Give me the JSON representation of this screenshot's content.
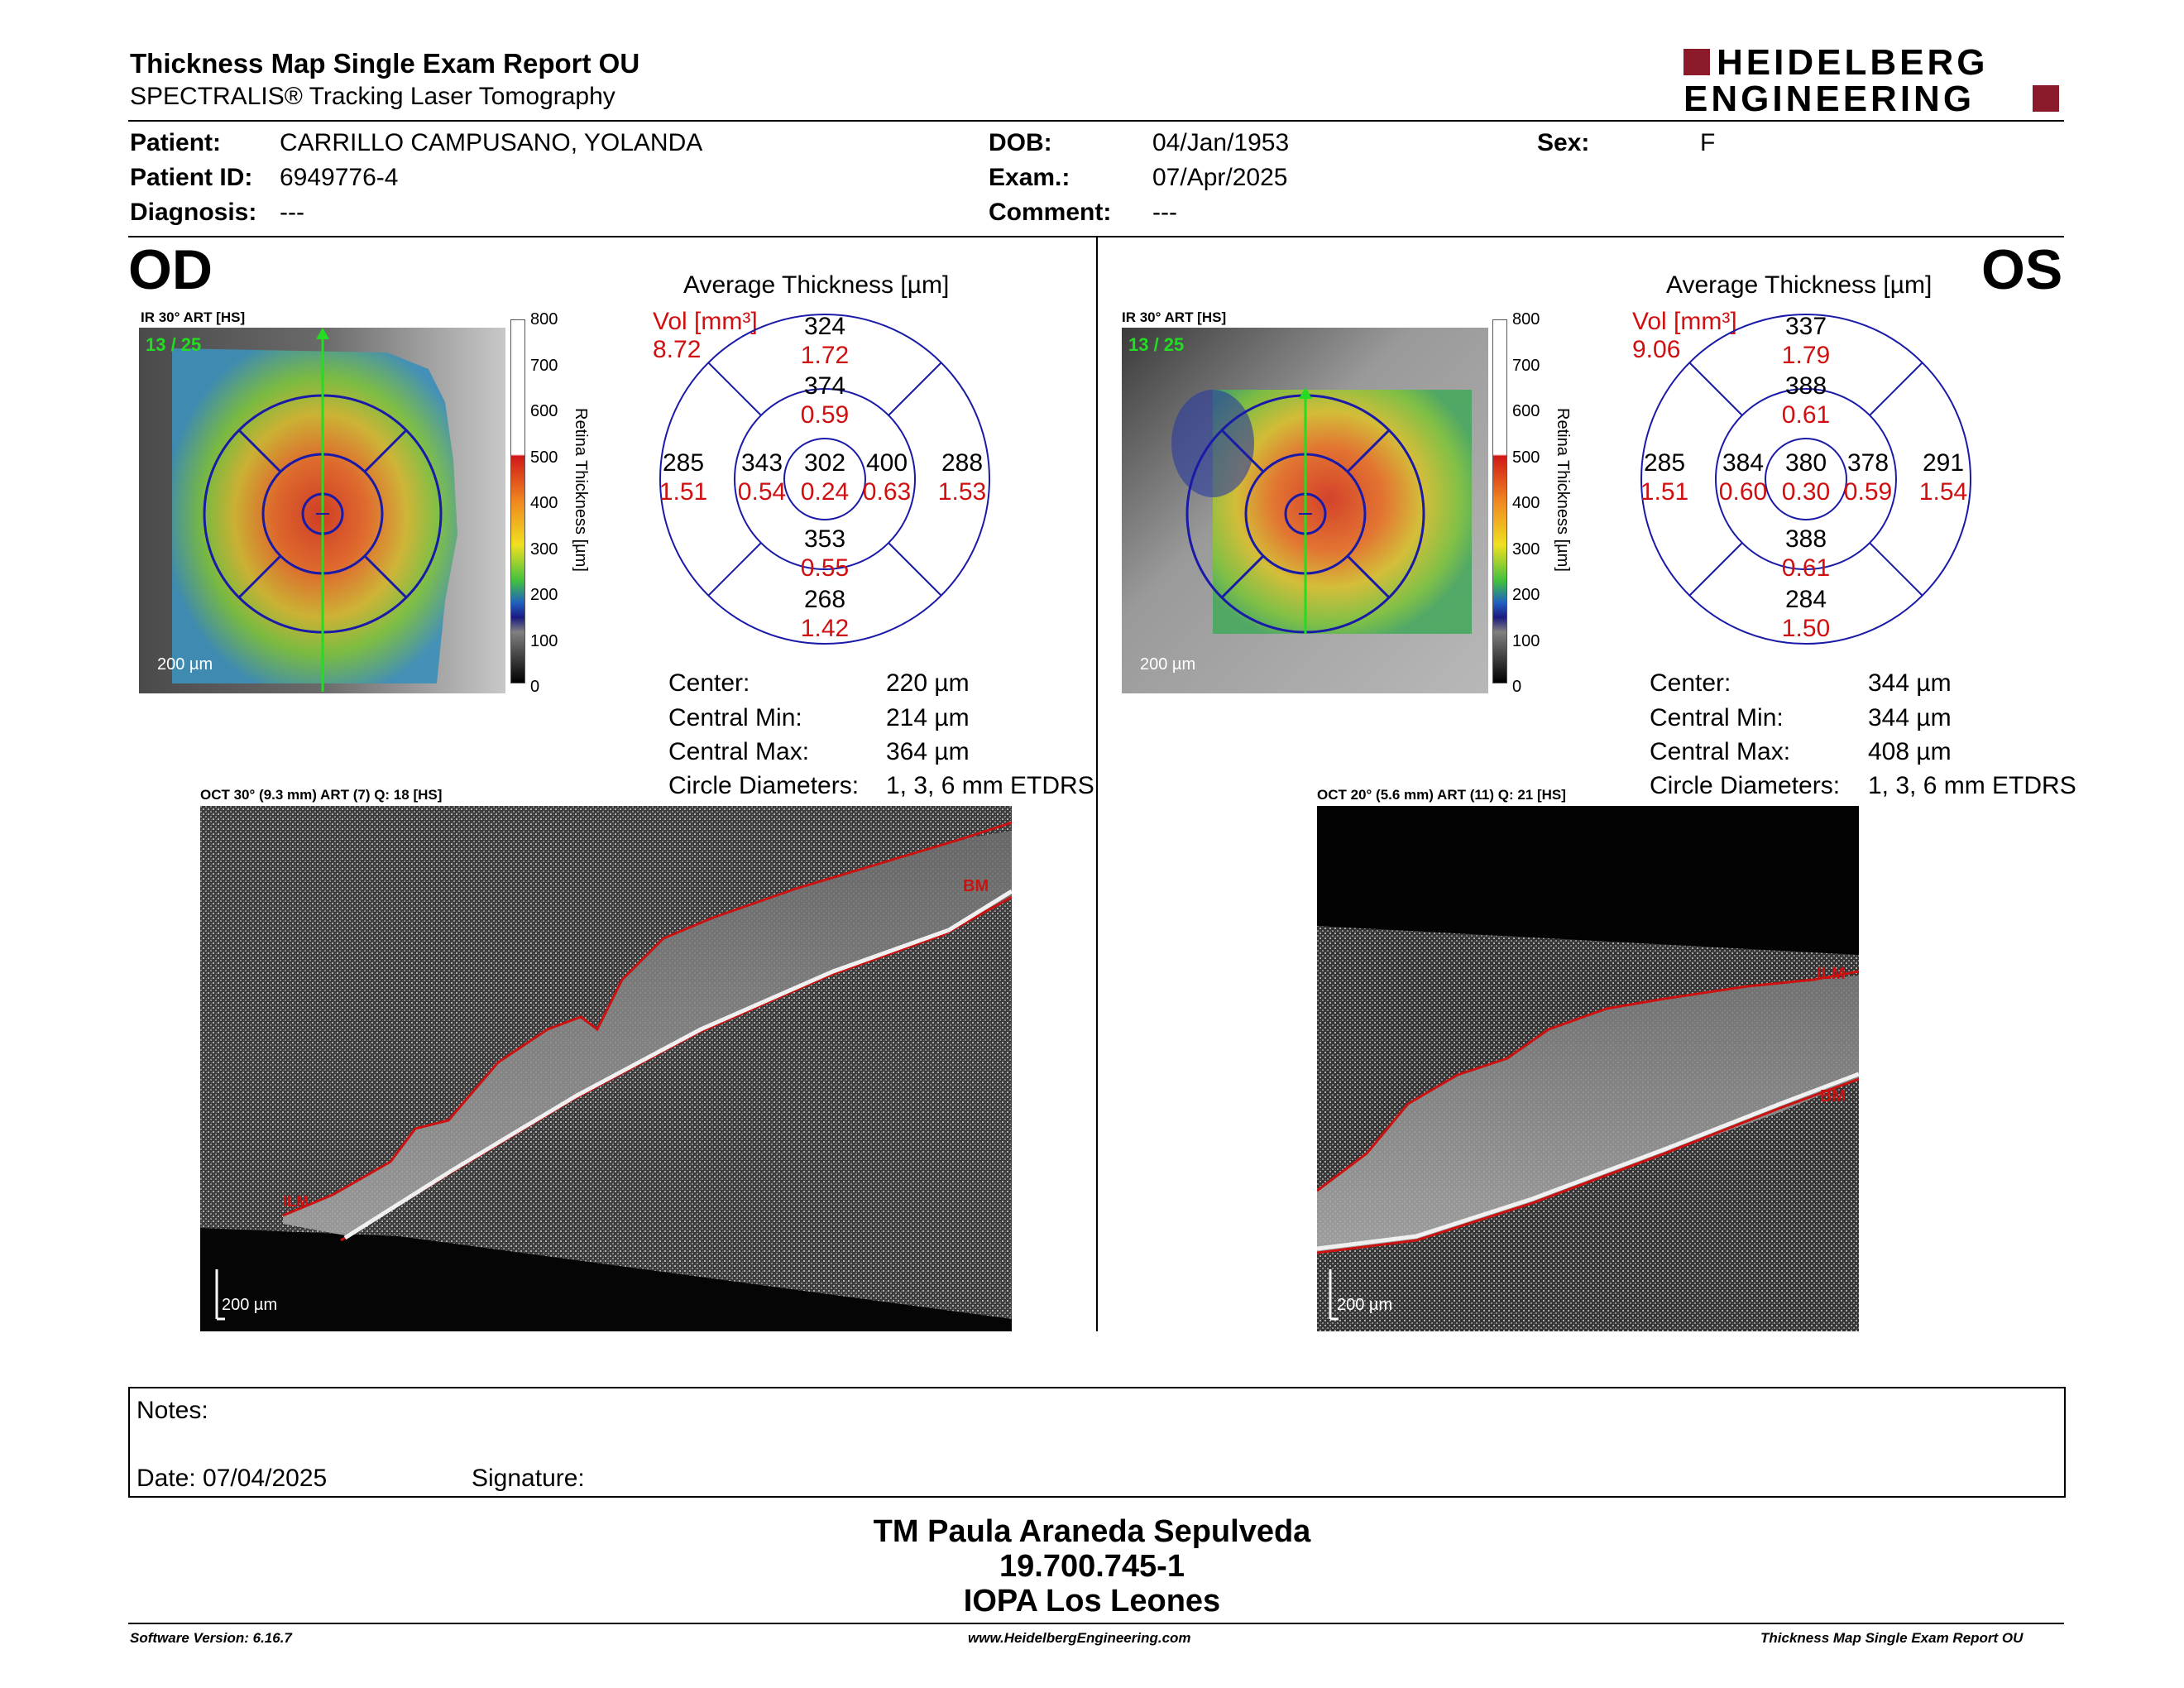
{
  "header": {
    "title": "Thickness Map Single Exam Report OU",
    "subtitle": "SPECTRALIS® Tracking Laser Tomography",
    "logo_line1": "HEIDELBERG",
    "logo_line2": "ENGINEERING",
    "logo_color": "#8b1a2b"
  },
  "patient": {
    "patient_label": "Patient:",
    "patient_value": "CARRILLO CAMPUSANO, YOLANDA",
    "id_label": "Patient ID:",
    "id_value": "6949776-4",
    "diagnosis_label": "Diagnosis:",
    "diagnosis_value": "---",
    "dob_label": "DOB:",
    "dob_value": "04/Jan/1953",
    "exam_label": "Exam.:",
    "exam_value": "07/Apr/2025",
    "comment_label": "Comment:",
    "comment_value": "---",
    "sex_label": "Sex:",
    "sex_value": "F"
  },
  "od": {
    "eye_label": "OD",
    "ir_label": "IR 30° ART [HS]",
    "frames": "13 / 25",
    "scale": "200 µm",
    "avg_title": "Average Thickness [µm]",
    "vol_label": "Vol [mm³]",
    "vol_value": "8.72",
    "sectors": {
      "center_t": "302",
      "center_v": "0.24",
      "inner_sup_t": "374",
      "inner_sup_v": "0.59",
      "inner_inf_t": "353",
      "inner_inf_v": "0.55",
      "inner_left_t": "343",
      "inner_left_v": "0.54",
      "inner_right_t": "400",
      "inner_right_v": "0.63",
      "outer_sup_t": "324",
      "outer_sup_v": "1.72",
      "outer_inf_t": "268",
      "outer_inf_v": "1.42",
      "outer_left_t": "285",
      "outer_left_v": "1.51",
      "outer_right_t": "288",
      "outer_right_v": "1.53"
    },
    "stats": {
      "center_label": "Center:",
      "center_value": "220 µm",
      "min_label": "Central Min:",
      "min_value": "214 µm",
      "max_label": "Central Max:",
      "max_value": "364 µm",
      "diam_label": "Circle Diameters:",
      "diam_value": "1, 3, 6 mm ETDRS"
    },
    "oct_label": "OCT 30° (9.3 mm) ART (7) Q: 18 [HS]",
    "oct_scale": "200 µm",
    "tag_bm": "BM",
    "tag_ilm": "ILM"
  },
  "os": {
    "eye_label": "OS",
    "ir_label": "IR 30° ART [HS]",
    "frames": "13 / 25",
    "scale": "200 µm",
    "avg_title": "Average Thickness [µm]",
    "vol_label": "Vol [mm³]",
    "vol_value": "9.06",
    "sectors": {
      "center_t": "380",
      "center_v": "0.30",
      "inner_sup_t": "388",
      "inner_sup_v": "0.61",
      "inner_inf_t": "388",
      "inner_inf_v": "0.61",
      "inner_left_t": "384",
      "inner_left_v": "0.60",
      "inner_right_t": "378",
      "inner_right_v": "0.59",
      "outer_sup_t": "337",
      "outer_sup_v": "1.79",
      "outer_inf_t": "284",
      "outer_inf_v": "1.50",
      "outer_left_t": "285",
      "outer_left_v": "1.51",
      "outer_right_t": "291",
      "outer_right_v": "1.54"
    },
    "stats": {
      "center_label": "Center:",
      "center_value": "344 µm",
      "min_label": "Central Min:",
      "min_value": "344 µm",
      "max_label": "Central Max:",
      "max_value": "408 µm",
      "diam_label": "Circle Diameters:",
      "diam_value": "1, 3, 6 mm ETDRS"
    },
    "oct_label": "OCT 20° (5.6 mm) ART (11) Q: 21 [HS]",
    "oct_scale": "200 µm",
    "tag_bm": "BM",
    "tag_ilm": "ILM"
  },
  "colorbar": {
    "ticks": [
      "800",
      "700",
      "600",
      "500",
      "400",
      "300",
      "200",
      "100",
      "0"
    ],
    "label": "Retina Thickness [µm]"
  },
  "notes": {
    "notes_label": "Notes:",
    "date_label": "Date: 07/04/2025",
    "signature_label": "Signature:"
  },
  "signature_block": {
    "line1": "TM Paula Araneda Sepulveda",
    "line2": "19.700.745-1",
    "line3": "IOPA Los Leones"
  },
  "footer": {
    "software": "Software Version: 6.16.7",
    "website": "www.HeidelbergEngineering.com",
    "report": "Thickness Map Single Exam Report OU"
  },
  "colors": {
    "etdrs_grid": "#1a1aa8",
    "volume_red": "#d01010",
    "frame_green": "#22dd22",
    "segmentation_red": "#cc1111"
  }
}
